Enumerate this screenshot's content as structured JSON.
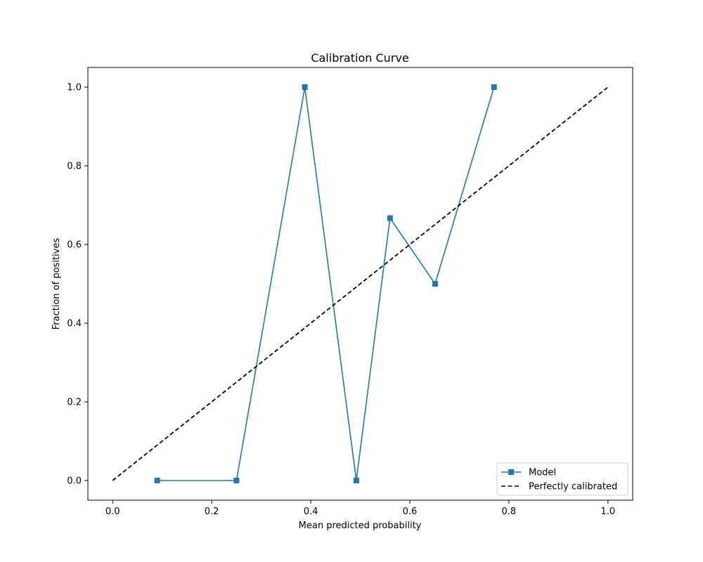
{
  "chart_data": {
    "type": "line",
    "title": "Calibration Curve",
    "xlabel": "Mean predicted probability",
    "ylabel": "Fraction of positives",
    "xlim": [
      -0.05,
      1.05
    ],
    "ylim": [
      -0.05,
      1.05
    ],
    "xticks": [
      0.0,
      0.2,
      0.4,
      0.6,
      0.8,
      1.0
    ],
    "yticks": [
      0.0,
      0.2,
      0.4,
      0.6,
      0.8,
      1.0
    ],
    "xtick_labels": [
      "0.0",
      "0.2",
      "0.4",
      "0.6",
      "0.8",
      "1.0"
    ],
    "ytick_labels": [
      "0.0",
      "0.2",
      "0.4",
      "0.6",
      "0.8",
      "1.0"
    ],
    "grid": false,
    "legend_position": "lower-right",
    "series": [
      {
        "name": "Model",
        "style": "solid",
        "marker": "square",
        "color": "#1f77b4",
        "x": [
          0.09,
          0.25,
          0.388,
          0.492,
          0.56,
          0.651,
          0.77
        ],
        "y": [
          0.0,
          0.0,
          1.0,
          0.0,
          0.667,
          0.5,
          1.0
        ]
      },
      {
        "name": "Perfectly calibrated",
        "style": "dashed",
        "marker": "none",
        "color": "#000000",
        "x": [
          0.0,
          1.0
        ],
        "y": [
          0.0,
          1.0
        ]
      }
    ]
  }
}
